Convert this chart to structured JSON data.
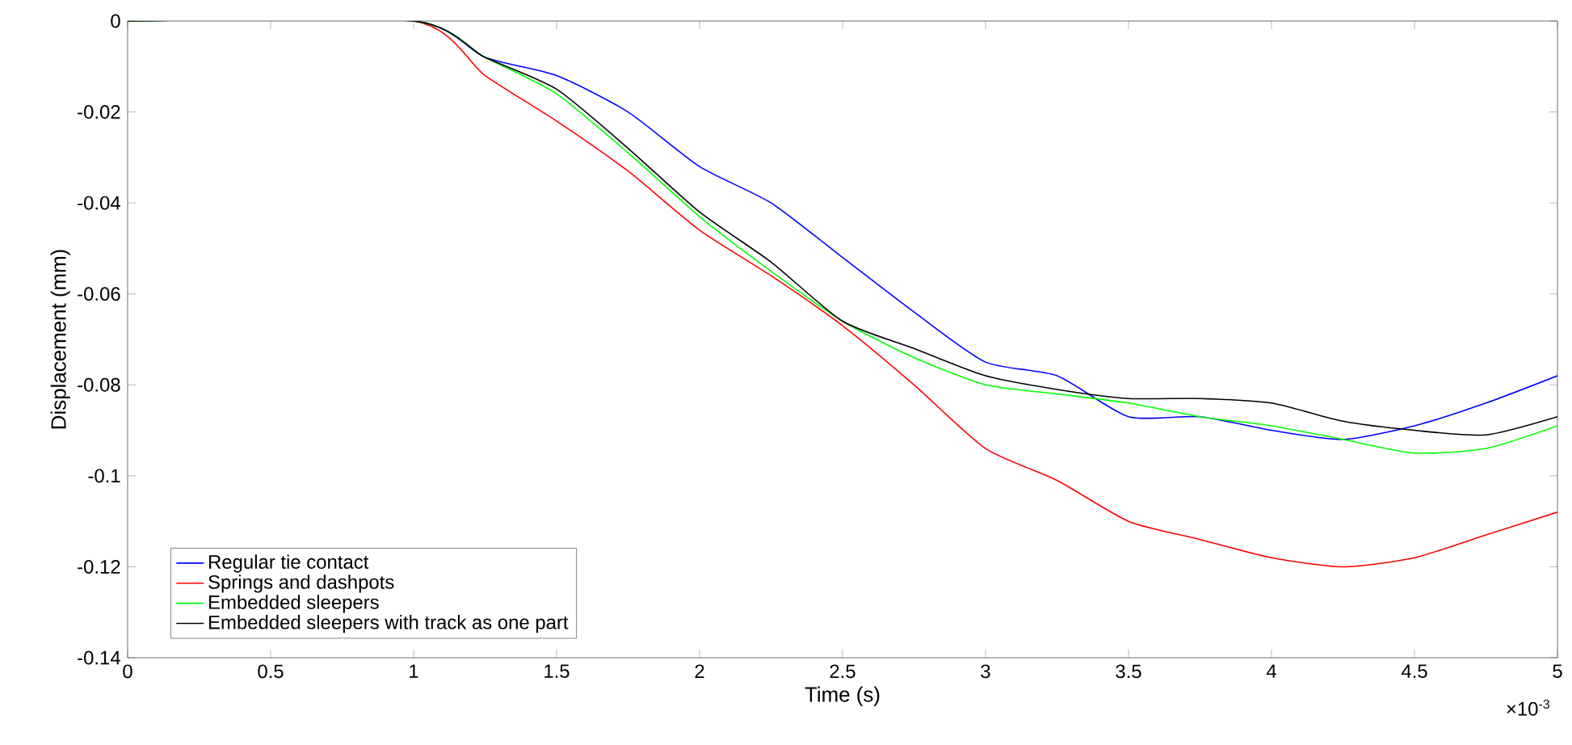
{
  "chart_data": {
    "type": "line",
    "xlabel": "Time (s)",
    "ylabel": "Displacement (mm)",
    "x": [
      0,
      1,
      1.25,
      1.5,
      1.75,
      2,
      2.25,
      2.5,
      2.75,
      3,
      3.25,
      3.5,
      3.75,
      4,
      4.25,
      4.5,
      4.75,
      5
    ],
    "series": [
      {
        "name": "Regular tie contact",
        "color": "#0000ff",
        "values": [
          0,
          0,
          -0.008,
          -0.012,
          -0.02,
          -0.032,
          -0.04,
          -0.052,
          -0.064,
          -0.075,
          -0.078,
          -0.087,
          -0.087,
          -0.09,
          -0.092,
          -0.089,
          -0.084,
          -0.078
        ]
      },
      {
        "name": "Springs and dashpots",
        "color": "#ff0000",
        "values": [
          0,
          0,
          -0.012,
          -0.022,
          -0.033,
          -0.046,
          -0.056,
          -0.067,
          -0.08,
          -0.094,
          -0.101,
          -0.11,
          -0.114,
          -0.118,
          -0.12,
          -0.118,
          -0.113,
          -0.108
        ]
      },
      {
        "name": "Embedded sleepers",
        "color": "#00ff00",
        "values": [
          0,
          0,
          -0.008,
          -0.016,
          -0.029,
          -0.043,
          -0.055,
          -0.066,
          -0.074,
          -0.08,
          -0.082,
          -0.084,
          -0.087,
          -0.089,
          -0.092,
          -0.095,
          -0.094,
          -0.089
        ]
      },
      {
        "name": "Embedded sleepers with track as one part",
        "color": "#000000",
        "values": [
          0,
          0,
          -0.008,
          -0.015,
          -0.028,
          -0.042,
          -0.053,
          -0.066,
          -0.072,
          -0.078,
          -0.081,
          -0.083,
          -0.083,
          -0.084,
          -0.088,
          -0.09,
          -0.091,
          -0.087
        ]
      }
    ],
    "xlim": [
      0,
      5
    ],
    "xticks": [
      0,
      0.5,
      1,
      1.5,
      2,
      2.5,
      3,
      3.5,
      4,
      4.5,
      5
    ],
    "ylim": [
      -0.14,
      0
    ],
    "yticks": [
      -0.14,
      -0.12,
      -0.1,
      -0.08,
      -0.06,
      -0.04,
      -0.02,
      0
    ],
    "annotations": [
      "×10$^{-3}$"
    ],
    "legend": "bottom left",
    "grid": false,
    "marker": "none",
    "line_style": "solid"
  }
}
